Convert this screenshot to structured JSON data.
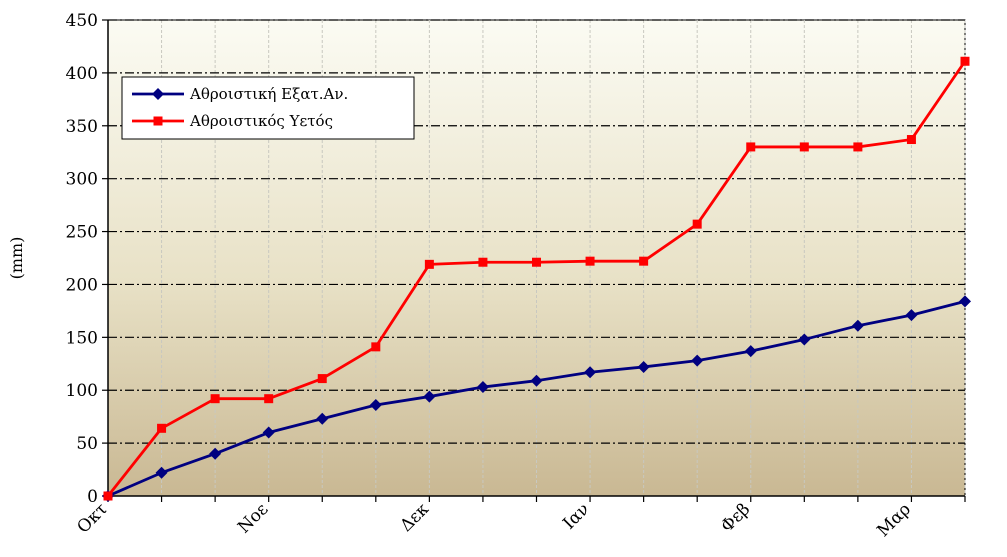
{
  "chart_data": {
    "type": "line",
    "ylabel": "(mm)",
    "xlabel": "",
    "title": "",
    "ylim": [
      0,
      450
    ],
    "yticks": [
      0,
      50,
      100,
      150,
      200,
      250,
      300,
      350,
      400,
      450
    ],
    "x_month_labels": [
      {
        "index": 0,
        "label": "Οκτ"
      },
      {
        "index": 3,
        "label": "Νοε"
      },
      {
        "index": 6,
        "label": "Δεκ"
      },
      {
        "index": 9,
        "label": "Ιαν"
      },
      {
        "index": 12,
        "label": "Φεβ"
      },
      {
        "index": 15,
        "label": "Μαρ"
      }
    ],
    "legend_placement": "top-left",
    "grid": true,
    "series": [
      {
        "name": "Αθροιστική Εξατ.Αν.",
        "color": "#000080",
        "marker": "diamond",
        "values": [
          0,
          22,
          40,
          60,
          73,
          86,
          94,
          103,
          109,
          117,
          122,
          128,
          137,
          148,
          161,
          171,
          184
        ]
      },
      {
        "name": "Αθροιστικός Υετός",
        "color": "#ff0000",
        "marker": "square",
        "values": [
          0,
          64,
          92,
          92,
          111,
          141,
          219,
          221,
          221,
          222,
          222,
          257,
          330,
          330,
          330,
          337,
          411
        ]
      }
    ]
  }
}
